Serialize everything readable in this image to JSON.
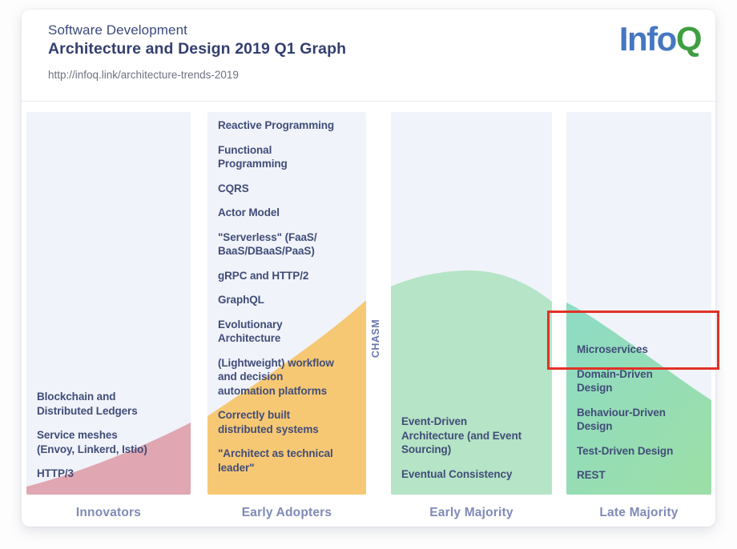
{
  "header": {
    "kicker": "Software Development",
    "title": "Architecture and Design 2019 Q1 Graph",
    "url": "http://infoq.link/architecture-trends-2019",
    "logo": {
      "info": "Info",
      "q": "Q"
    }
  },
  "chasm_label": "CHASM",
  "columns": [
    {
      "label": "Innovators",
      "items": [
        "Blockchain and\nDistributed Ledgers",
        "Service meshes\n(Envoy, Linkerd, Istio)",
        "HTTP/3"
      ]
    },
    {
      "label": "Early Adopters",
      "items": [
        "Reactive Programming",
        "Functional\nProgramming",
        "CQRS",
        "Actor Model",
        "\"Serverless\" (FaaS/\nBaaS/DBaaS/PaaS)",
        "gRPC and HTTP/2",
        "GraphQL",
        "Evolutionary\nArchitecture",
        "(Lightweight) workflow\nand decision\nautomation platforms",
        "Correctly built\ndistributed systems",
        "\"Architect as technical\nleader\""
      ]
    },
    {
      "label": "Early Majority",
      "items": [
        "Event-Driven\nArchitecture (and Event\nSourcing)",
        "Eventual Consistency"
      ]
    },
    {
      "label": "Late Majority",
      "items": [
        "Microservices",
        "Domain-Driven\nDesign",
        "Behaviour-Driven\nDesign",
        "Test-Driven Design",
        "REST"
      ]
    }
  ],
  "highlight": {
    "target_item": "Microservices"
  },
  "colors": {
    "innovators_shape": "#e0a6b1",
    "early_adopters_shape": "#f7c873",
    "early_majority_shape": "#b5e4c6",
    "late_majority_teal": "#8edcc6",
    "late_majority_green": "#9bdea8",
    "logo_blue": "#4577c1",
    "logo_green": "#3f9e41",
    "highlight_red": "#e23127",
    "column_bg": "#f0f3fa",
    "item_text": "#414d78",
    "stage_label_text": "#7f8ab7"
  }
}
